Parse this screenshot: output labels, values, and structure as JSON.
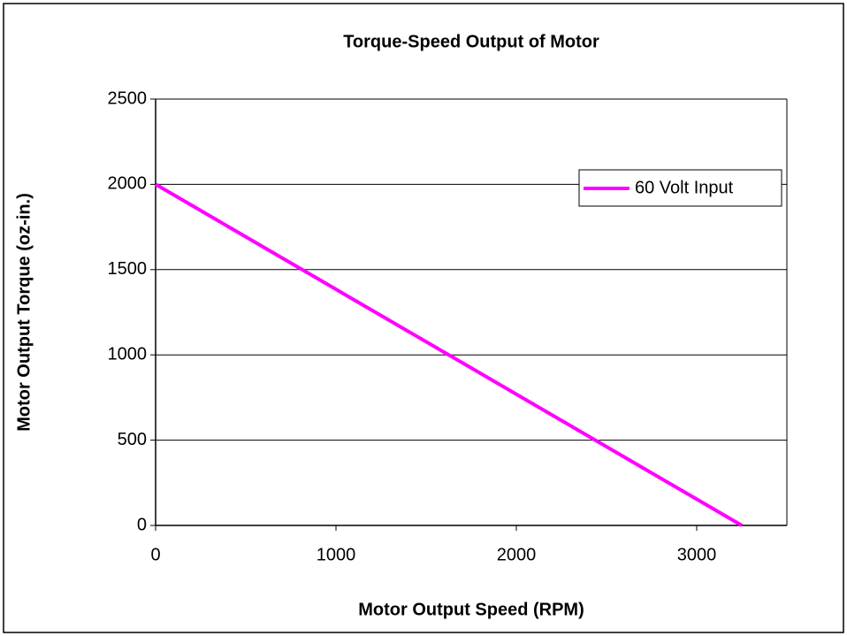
{
  "chart_data": {
    "type": "line",
    "title": "Torque-Speed Output of Motor",
    "x_label": "Motor Output Speed (RPM)",
    "y_label": "Motor Output Torque (oz-in.)",
    "x": [
      0,
      3250
    ],
    "series": [
      {
        "name": "60 Volt Input",
        "color": "#ff00ff",
        "values": [
          2000,
          0
        ]
      }
    ],
    "xlim": [
      0,
      3500
    ],
    "xticks": [
      0,
      1000,
      2000,
      3000
    ],
    "ylim": [
      0,
      2500
    ],
    "yticks": [
      0,
      500,
      1000,
      1500,
      2000,
      2500
    ],
    "grid": true,
    "legend": "upper right"
  }
}
